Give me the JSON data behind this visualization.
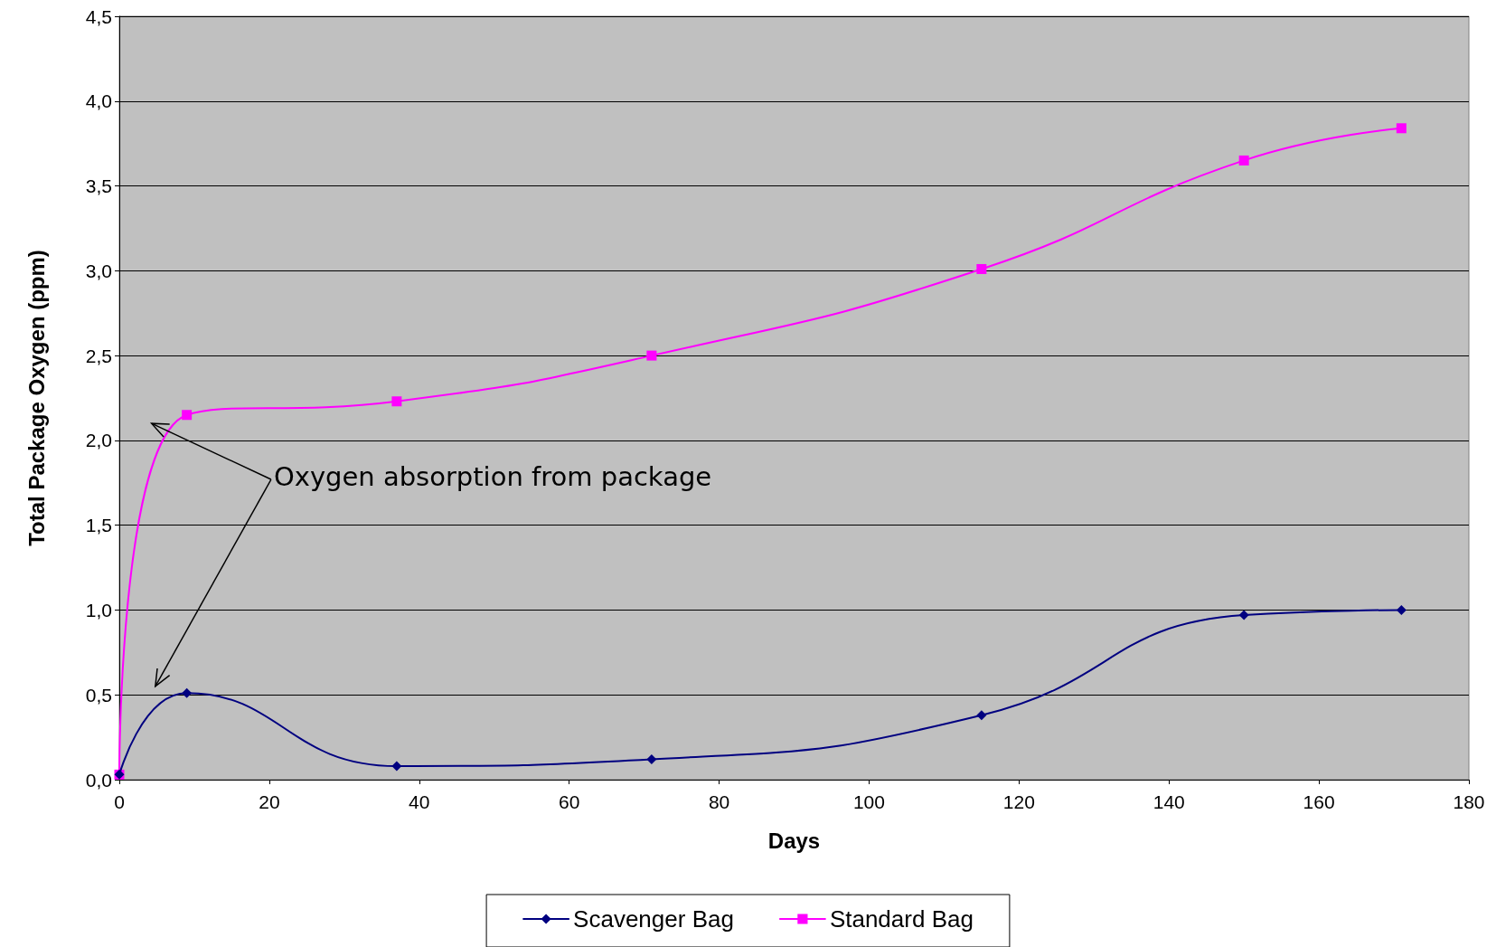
{
  "chart_data": {
    "type": "line",
    "xlabel": "Days",
    "ylabel": "Total Package Oxygen (ppm)",
    "xlim": [
      0,
      180
    ],
    "xticks": [
      0,
      20,
      40,
      60,
      80,
      100,
      120,
      140,
      160,
      180
    ],
    "ylim": [
      0,
      4.5
    ],
    "yticks": [
      {
        "value": 0,
        "label": "0,0"
      },
      {
        "value": 0.5,
        "label": "0,5"
      },
      {
        "value": 1,
        "label": "1,0"
      },
      {
        "value": 1.5,
        "label": "1,5"
      },
      {
        "value": 2,
        "label": "2,0"
      },
      {
        "value": 2.5,
        "label": "2,5"
      },
      {
        "value": 3,
        "label": "3,0"
      },
      {
        "value": 3.5,
        "label": "3,5"
      },
      {
        "value": 4,
        "label": "4,0"
      },
      {
        "value": 4.5,
        "label": "4,5"
      }
    ],
    "grid": "y",
    "legend": "bottom",
    "line_style": "solid",
    "annotations": [
      "Oxygen absorption from package"
    ],
    "x": [
      0,
      9,
      37,
      71,
      115,
      150,
      171
    ],
    "series": [
      {
        "name": "Scavenger Bag",
        "color": "#000080",
        "marker": "diamond",
        "values": [
          0.03,
          0.51,
          0.08,
          0.12,
          0.38,
          0.97,
          1.0
        ]
      },
      {
        "name": "Standard Bag",
        "color": "#ff00ff",
        "marker": "square",
        "values": [
          0.03,
          2.15,
          2.23,
          2.5,
          3.01,
          3.65,
          3.84
        ]
      }
    ]
  }
}
